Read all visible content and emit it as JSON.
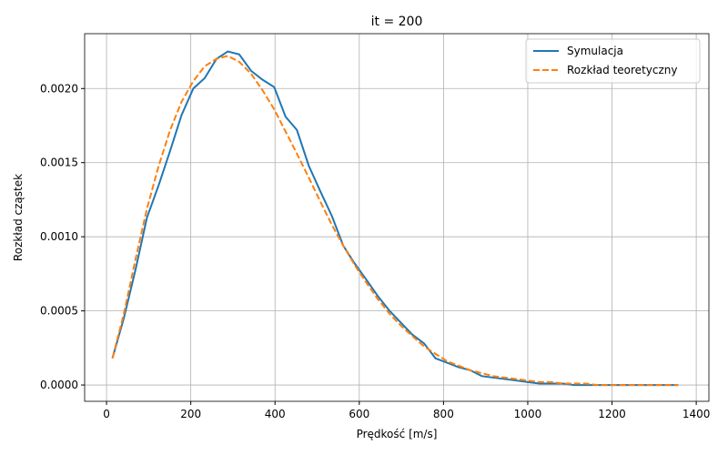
{
  "chart_data": {
    "type": "line",
    "title": "it = 200",
    "x_label": "Prędkość [m/s]",
    "y_label": "Rozkład cząstek",
    "x": [
      14,
      41,
      69,
      96,
      124,
      151,
      178,
      206,
      233,
      261,
      288,
      315,
      343,
      370,
      398,
      425,
      452,
      480,
      507,
      535,
      562,
      589,
      617,
      644,
      672,
      699,
      726,
      754,
      781,
      809,
      836,
      863,
      891,
      918,
      946,
      973,
      1000,
      1028,
      1055,
      1083,
      1110,
      1137,
      1165,
      1192,
      1220,
      1247,
      1274,
      1302,
      1329,
      1357
    ],
    "series": [
      {
        "name": "Symulacja",
        "color": "#1f77b4",
        "dash": "solid",
        "values": [
          0.00018,
          0.00045,
          0.00078,
          0.00113,
          0.00135,
          0.00158,
          0.00182,
          0.002,
          0.00207,
          0.0022,
          0.00225,
          0.00223,
          0.00212,
          0.00206,
          0.00201,
          0.00181,
          0.00172,
          0.00148,
          0.00131,
          0.00114,
          0.00094,
          0.00082,
          0.00071,
          0.0006,
          0.0005,
          0.00042,
          0.00034,
          0.00028,
          0.00018,
          0.00015,
          0.00012,
          0.0001,
          6e-05,
          5e-05,
          4e-05,
          3e-05,
          2e-05,
          1e-05,
          1e-05,
          1e-05,
          0,
          0,
          0,
          0,
          0,
          0,
          0,
          0,
          0,
          0
        ]
      },
      {
        "name": "Rozkład teoretyczny",
        "color": "#ff7f0e",
        "dash": "dashed",
        "values": [
          0.00018,
          0.00048,
          0.00085,
          0.00119,
          0.00148,
          0.00172,
          0.00191,
          0.00205,
          0.00215,
          0.0022,
          0.00222,
          0.00218,
          0.0021,
          0.00199,
          0.00186,
          0.00171,
          0.00156,
          0.0014,
          0.00124,
          0.00108,
          0.00094,
          0.00081,
          0.00069,
          0.00058,
          0.00048,
          0.0004,
          0.00033,
          0.00026,
          0.00021,
          0.00016,
          0.00013,
          0.0001,
          8e-05,
          6e-05,
          5e-05,
          4e-05,
          3e-05,
          2e-05,
          2e-05,
          1e-05,
          1e-05,
          1e-05,
          0,
          0,
          0,
          0,
          0,
          0,
          0,
          0
        ]
      }
    ],
    "xlim": [
      -52,
      1430
    ],
    "xticks": [
      0,
      200,
      400,
      600,
      800,
      1000,
      1200,
      1400
    ],
    "ylim": [
      -0.00011,
      0.00237
    ],
    "yticks": [
      {
        "value": 0,
        "label": "0.0000"
      },
      {
        "value": 0.0005,
        "label": "0.0005"
      },
      {
        "value": 0.001,
        "label": "0.0010"
      },
      {
        "value": 0.0015,
        "label": "0.0015"
      },
      {
        "value": 0.002,
        "label": "0.0020"
      }
    ],
    "grid": true,
    "legend": "upper right"
  }
}
